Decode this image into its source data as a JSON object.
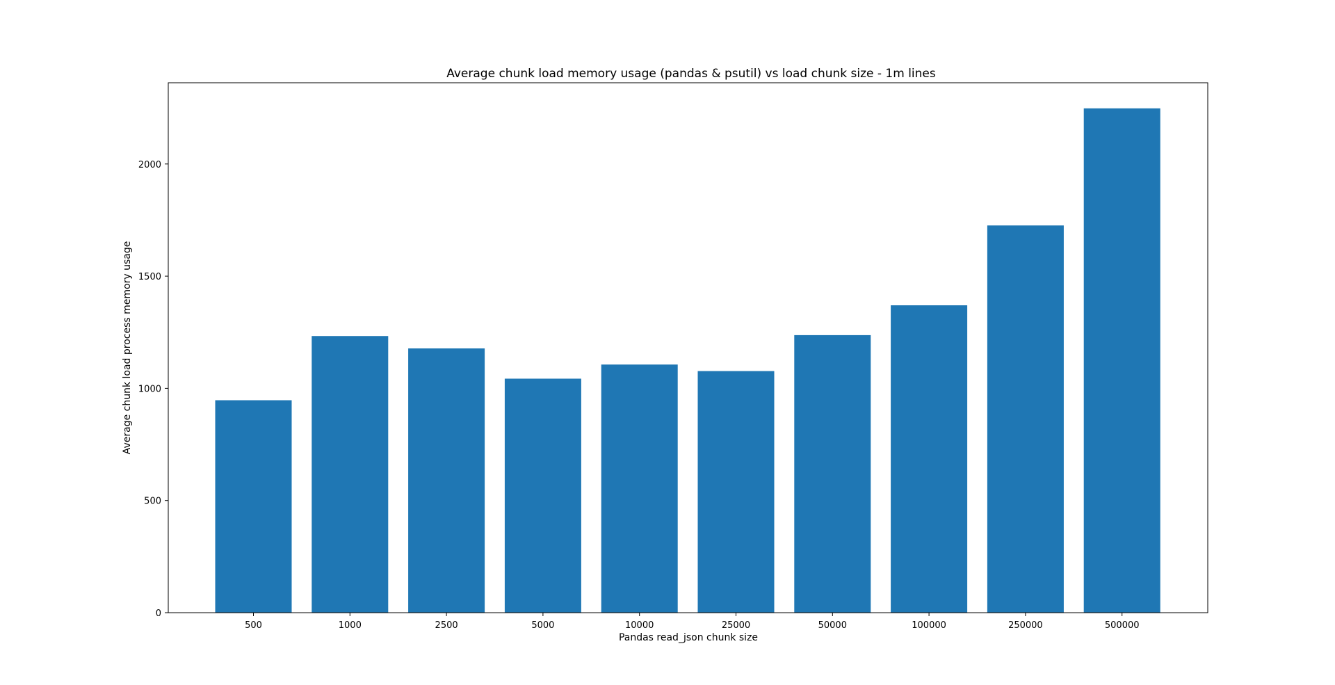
{
  "chart_data": {
    "type": "bar",
    "title": "Average chunk load memory usage (pandas & psutil) vs load chunk size - 1m lines",
    "xlabel": "Pandas read_json chunk size",
    "ylabel": "Average chunk load process memory usage",
    "categories": [
      "500",
      "1000",
      "2500",
      "5000",
      "10000",
      "25000",
      "50000",
      "100000",
      "250000",
      "500000"
    ],
    "values": [
      947,
      1233,
      1178,
      1043,
      1106,
      1077,
      1237,
      1370,
      1726,
      2248
    ],
    "ylim": [
      0,
      2362
    ],
    "yticks": [
      0,
      500,
      1000,
      1500,
      2000
    ],
    "bar_color": "#1f77b4",
    "grid": false,
    "legend": "none"
  }
}
